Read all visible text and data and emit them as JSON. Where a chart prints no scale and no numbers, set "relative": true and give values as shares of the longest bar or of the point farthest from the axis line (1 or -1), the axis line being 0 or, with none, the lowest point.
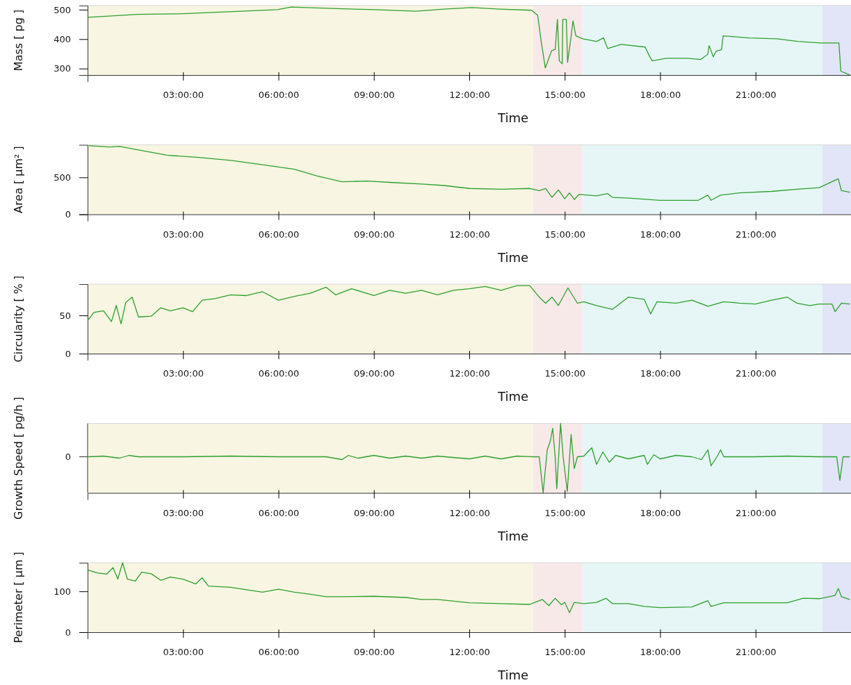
{
  "chart_data": [
    {
      "type": "line",
      "ylabel": "Mass [ pg ]",
      "xlabel": "Time",
      "color": "#2ca02c",
      "x": [
        0.03,
        1.6,
        2.9,
        4.45,
        5.97,
        6.4,
        7.5,
        8.37,
        9.02,
        10.33,
        11.2,
        12.08,
        12.95,
        13.96,
        14.15,
        14.26,
        14.39,
        14.59,
        14.7,
        14.77,
        14.83,
        14.92,
        14.94,
        15.05,
        15.09,
        15.18,
        15.26,
        15.35,
        15.57,
        16.0,
        16.22,
        16.35,
        16.77,
        17.53,
        17.65,
        17.75,
        18.19,
        18.84,
        19.28,
        19.5,
        19.54,
        19.67,
        19.76,
        19.93,
        19.98,
        20.8,
        21.68,
        22.33,
        23.05,
        23.62,
        23.68,
        23.95
      ],
      "values": [
        474,
        484,
        486,
        493,
        500,
        509,
        505,
        502,
        500,
        495,
        502,
        507,
        502,
        498,
        481,
        392,
        302,
        361,
        365,
        467,
        326,
        316,
        467,
        467,
        321,
        392,
        462,
        411,
        401,
        392,
        404,
        368,
        382,
        373,
        345,
        326,
        335,
        335,
        331,
        349,
        378,
        340,
        359,
        364,
        411,
        404,
        401,
        392,
        387,
        387,
        291,
        279
      ],
      "xlim": [
        0,
        24
      ],
      "xticks": [
        {
          "value": 3,
          "label": "03:00:00"
        },
        {
          "value": 6,
          "label": "06:00:00"
        },
        {
          "value": 9,
          "label": "09:00:00"
        },
        {
          "value": 12,
          "label": "12:00:00"
        },
        {
          "value": 15,
          "label": "15:00:00"
        },
        {
          "value": 18,
          "label": "18:00:00"
        },
        {
          "value": 21,
          "label": "21:00:00"
        }
      ],
      "ylim": [
        278,
        514
      ],
      "yticks": [
        300,
        400,
        500
      ],
      "bands": [
        {
          "axis": "x",
          "from": 0,
          "to": 14.0,
          "color": "#f8f5e2"
        },
        {
          "axis": "x",
          "from": 14.0,
          "to": 15.55,
          "color": "#f8e9e9"
        },
        {
          "axis": "x",
          "from": 15.55,
          "to": 23.1,
          "color": "#e6f6f6"
        },
        {
          "axis": "x",
          "from": 23.1,
          "to": 24,
          "color": "#e1e5f7"
        }
      ]
    },
    {
      "type": "line",
      "ylabel": "Area [ μm² ]",
      "xlabel": "Time",
      "color": "#2ca02c",
      "x": [
        0.05,
        0.7,
        1.0,
        1.6,
        2.5,
        3.5,
        4.5,
        5.5,
        6.5,
        7.2,
        8.0,
        8.8,
        9.6,
        10.5,
        11.2,
        12.0,
        13.0,
        13.9,
        14.2,
        14.4,
        14.6,
        14.8,
        15.0,
        15.15,
        15.3,
        15.45,
        16.0,
        16.35,
        16.5,
        17.0,
        18.0,
        19.2,
        19.5,
        19.6,
        19.9,
        20.5,
        21.5,
        22.3,
        23.0,
        23.6,
        23.7,
        23.95
      ],
      "values": [
        930,
        910,
        920,
        870,
        800,
        770,
        730,
        670,
        610,
        520,
        440,
        450,
        430,
        410,
        390,
        350,
        340,
        350,
        320,
        350,
        230,
        330,
        210,
        290,
        200,
        270,
        250,
        280,
        230,
        220,
        190,
        190,
        260,
        190,
        260,
        290,
        310,
        340,
        360,
        480,
        320,
        300
      ],
      "xlim": [
        0,
        24
      ],
      "xticks": [
        {
          "value": 3,
          "label": "03:00:00"
        },
        {
          "value": 6,
          "label": "06:00:00"
        },
        {
          "value": 9,
          "label": "09:00:00"
        },
        {
          "value": 12,
          "label": "12:00:00"
        },
        {
          "value": 15,
          "label": "15:00:00"
        },
        {
          "value": 18,
          "label": "18:00:00"
        },
        {
          "value": 21,
          "label": "21:00:00"
        }
      ],
      "ylim": [
        0,
        940
      ],
      "yticks": [
        0,
        500
      ],
      "bands": [
        {
          "axis": "x",
          "from": 0,
          "to": 14.0,
          "color": "#f8f5e2"
        },
        {
          "axis": "x",
          "from": 14.0,
          "to": 15.55,
          "color": "#f8e9e9"
        },
        {
          "axis": "x",
          "from": 15.55,
          "to": 23.1,
          "color": "#e6f6f6"
        },
        {
          "axis": "x",
          "from": 23.1,
          "to": 24,
          "color": "#e1e5f7"
        }
      ]
    },
    {
      "type": "line",
      "ylabel": "Circularity [ % ]",
      "xlabel": "Time",
      "color": "#2ca02c",
      "x": [
        0.03,
        0.2,
        0.5,
        0.75,
        0.9,
        1.05,
        1.2,
        1.4,
        1.6,
        2.0,
        2.3,
        2.6,
        3.0,
        3.3,
        3.6,
        4.0,
        4.5,
        5.0,
        5.5,
        6.0,
        6.5,
        7.0,
        7.5,
        7.8,
        8.3,
        9.0,
        9.5,
        10.0,
        10.5,
        11.0,
        11.5,
        12.0,
        12.5,
        13.0,
        13.5,
        13.9,
        14.2,
        14.4,
        14.6,
        14.8,
        15.1,
        15.4,
        15.6,
        16.0,
        16.5,
        17.0,
        17.5,
        17.7,
        17.9,
        18.5,
        19.0,
        19.5,
        20.0,
        20.5,
        21.0,
        21.5,
        22.0,
        22.3,
        22.7,
        23.0,
        23.4,
        23.5,
        23.7,
        23.95
      ],
      "values": [
        45,
        54,
        56,
        42,
        63,
        39,
        67,
        74,
        48,
        49,
        60,
        56,
        60,
        55,
        70,
        72,
        77,
        76,
        81,
        70,
        75,
        79,
        87,
        77,
        85,
        76,
        83,
        79,
        83,
        77,
        83,
        85,
        88,
        83,
        89,
        89,
        74,
        66,
        74,
        63,
        86,
        66,
        68,
        63,
        58,
        74,
        71,
        52,
        68,
        66,
        70,
        62,
        68,
        66,
        65,
        70,
        74,
        66,
        63,
        65,
        65,
        55,
        66,
        65
      ],
      "xlim": [
        0,
        24
      ],
      "xticks": [
        {
          "value": 3,
          "label": "03:00:00"
        },
        {
          "value": 6,
          "label": "06:00:00"
        },
        {
          "value": 9,
          "label": "09:00:00"
        },
        {
          "value": 12,
          "label": "12:00:00"
        },
        {
          "value": 15,
          "label": "15:00:00"
        },
        {
          "value": 18,
          "label": "18:00:00"
        },
        {
          "value": 21,
          "label": "21:00:00"
        }
      ],
      "ylim": [
        0,
        91
      ],
      "yticks": [
        0,
        50
      ],
      "bands": [
        {
          "axis": "x",
          "from": 0,
          "to": 14.0,
          "color": "#f8f5e2"
        },
        {
          "axis": "x",
          "from": 14.0,
          "to": 15.55,
          "color": "#f8e9e9"
        },
        {
          "axis": "x",
          "from": 15.55,
          "to": 23.1,
          "color": "#e6f6f6"
        },
        {
          "axis": "x",
          "from": 23.1,
          "to": 24,
          "color": "#e1e5f7"
        }
      ]
    },
    {
      "type": "line",
      "ylabel": "Growth Speed [ pg/h ]",
      "xlabel": "Time",
      "color": "#2ca02c",
      "relative": true,
      "x": [
        0.03,
        0.5,
        1.0,
        1.3,
        1.6,
        3.0,
        4.5,
        6.0,
        7.5,
        8.0,
        8.2,
        8.5,
        9.0,
        9.5,
        10.0,
        10.5,
        11.0,
        12.0,
        12.5,
        13.0,
        13.5,
        14.0,
        14.2,
        14.32,
        14.45,
        14.55,
        14.62,
        14.7,
        14.75,
        14.87,
        14.95,
        15.08,
        15.2,
        15.3,
        15.4,
        15.6,
        15.85,
        16.0,
        16.2,
        16.4,
        16.6,
        17.0,
        17.5,
        17.6,
        17.8,
        18.0,
        18.5,
        19.0,
        19.3,
        19.5,
        19.6,
        19.8,
        19.9,
        20.0,
        21.0,
        22.0,
        23.0,
        23.55,
        23.65,
        23.75,
        23.95
      ],
      "values": [
        0.52,
        0.53,
        0.5,
        0.54,
        0.52,
        0.52,
        0.53,
        0.52,
        0.52,
        0.48,
        0.54,
        0.5,
        0.54,
        0.5,
        0.53,
        0.5,
        0.53,
        0.49,
        0.53,
        0.49,
        0.53,
        0.52,
        0.52,
        0,
        0.62,
        0.75,
        0.93,
        0.52,
        0.06,
        1,
        0.52,
        0.02,
        0.84,
        0.35,
        0.52,
        0.53,
        0.65,
        0.41,
        0.59,
        0.44,
        0.54,
        0.49,
        0.54,
        0.41,
        0.55,
        0.49,
        0.54,
        0.52,
        0.48,
        0.62,
        0.39,
        0.53,
        0.62,
        0.52,
        0.52,
        0.53,
        0.52,
        0.52,
        0.18,
        0.52,
        0.52
      ],
      "xlim": [
        0,
        24
      ],
      "xticks": [
        {
          "value": 3,
          "label": "03:00:00"
        },
        {
          "value": 6,
          "label": "06:00:00"
        },
        {
          "value": 9,
          "label": "09:00:00"
        },
        {
          "value": 12,
          "label": "12:00:00"
        },
        {
          "value": 15,
          "label": "15:00:00"
        },
        {
          "value": 18,
          "label": "18:00:00"
        },
        {
          "value": 21,
          "label": "21:00:00"
        }
      ],
      "annotations": [
        "0"
      ],
      "bands": [
        {
          "axis": "x",
          "from": 0,
          "to": 14.0,
          "color": "#f8f5e2"
        },
        {
          "axis": "x",
          "from": 14.0,
          "to": 15.55,
          "color": "#f8e9e9"
        },
        {
          "axis": "x",
          "from": 15.55,
          "to": 23.1,
          "color": "#e6f6f6"
        },
        {
          "axis": "x",
          "from": 23.1,
          "to": 24,
          "color": "#e1e5f7"
        }
      ]
    },
    {
      "type": "line",
      "ylabel": "Perimeter [ μm ]",
      "xlabel": "Time",
      "color": "#2ca02c",
      "x": [
        0.02,
        0.3,
        0.6,
        0.8,
        0.95,
        1.1,
        1.25,
        1.5,
        1.7,
        2.0,
        2.3,
        2.6,
        3.0,
        3.4,
        3.6,
        3.8,
        4.5,
        5.5,
        6.0,
        6.5,
        7.0,
        7.5,
        8.0,
        9.0,
        10.0,
        10.5,
        11.0,
        12.0,
        13.0,
        13.9,
        14.3,
        14.5,
        14.7,
        14.9,
        15.0,
        15.15,
        15.3,
        15.6,
        16.0,
        16.3,
        16.5,
        17.0,
        17.5,
        18.0,
        19.0,
        19.5,
        19.6,
        20.0,
        21.0,
        22.0,
        22.5,
        23.0,
        23.5,
        23.6,
        23.7,
        23.95
      ],
      "values": [
        152,
        145,
        142,
        158,
        130,
        170,
        130,
        125,
        147,
        143,
        127,
        135,
        130,
        118,
        133,
        113,
        110,
        98,
        105,
        98,
        93,
        87,
        87,
        88,
        85,
        80,
        80,
        72,
        70,
        68,
        80,
        65,
        83,
        67,
        73,
        48,
        73,
        70,
        73,
        83,
        70,
        70,
        63,
        60,
        62,
        77,
        63,
        72,
        72,
        72,
        83,
        82,
        90,
        107,
        87,
        80
      ],
      "xlim": [
        0,
        24
      ],
      "xticks": [
        {
          "value": 3,
          "label": "03:00:00"
        },
        {
          "value": 6,
          "label": "06:00:00"
        },
        {
          "value": 9,
          "label": "09:00:00"
        },
        {
          "value": 12,
          "label": "12:00:00"
        },
        {
          "value": 15,
          "label": "15:00:00"
        },
        {
          "value": 18,
          "label": "18:00:00"
        },
        {
          "value": 21,
          "label": "21:00:00"
        }
      ],
      "ylim": [
        0,
        170
      ],
      "yticks": [
        0,
        100
      ],
      "bands": [
        {
          "axis": "x",
          "from": 0,
          "to": 14.0,
          "color": "#f8f5e2"
        },
        {
          "axis": "x",
          "from": 14.0,
          "to": 15.55,
          "color": "#f8e9e9"
        },
        {
          "axis": "x",
          "from": 15.55,
          "to": 23.1,
          "color": "#e6f6f6"
        },
        {
          "axis": "x",
          "from": 23.1,
          "to": 24,
          "color": "#e1e5f7"
        }
      ]
    }
  ]
}
